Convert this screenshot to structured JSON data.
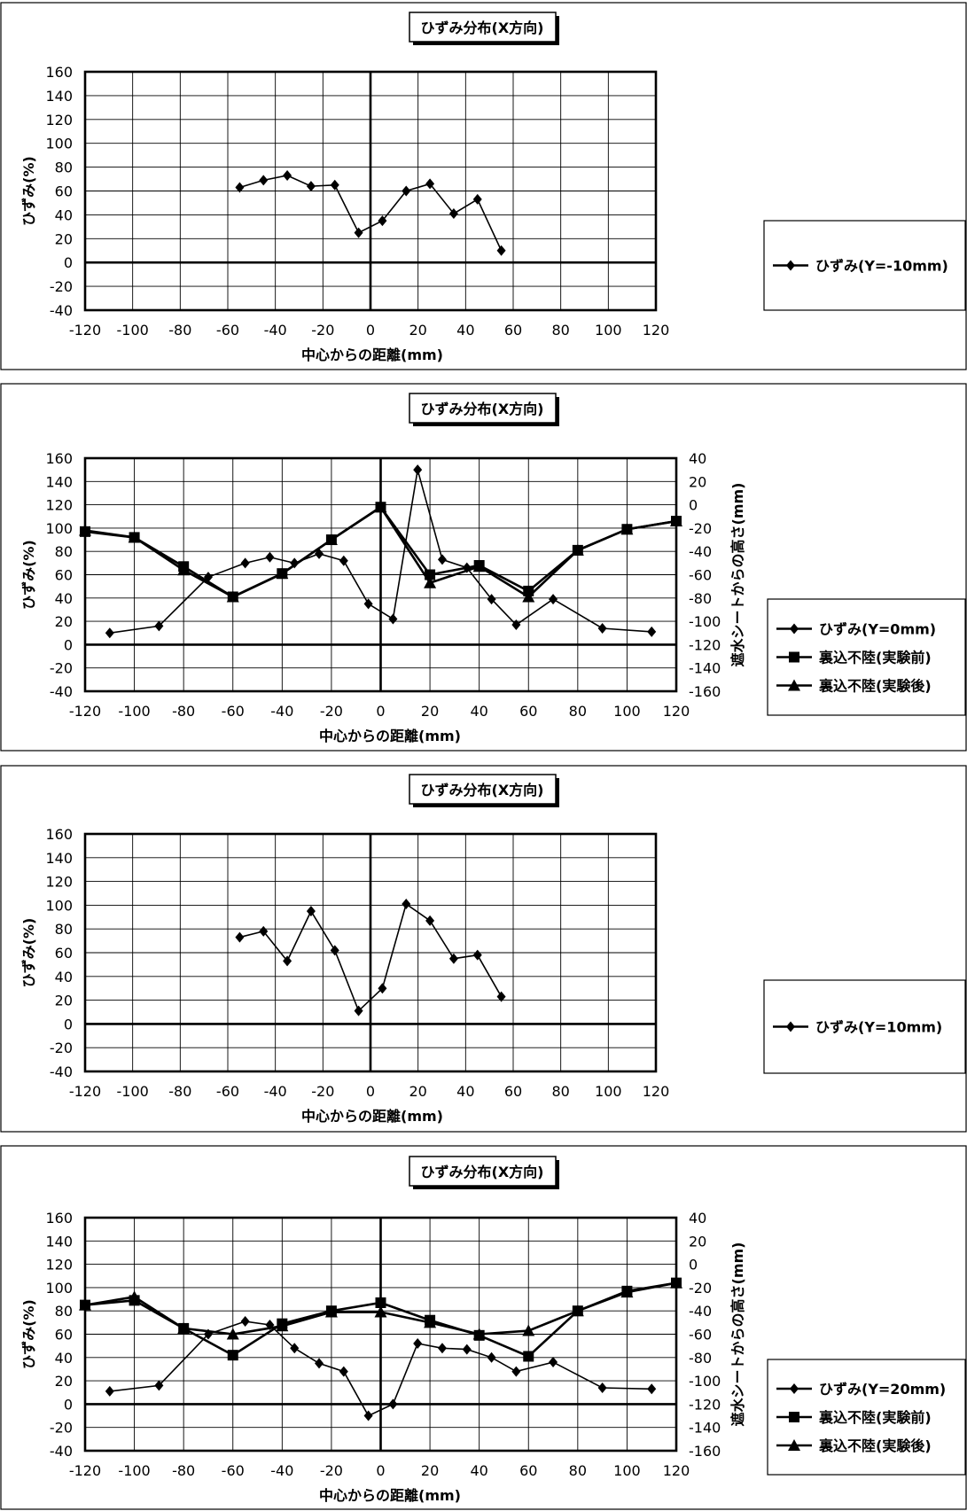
{
  "chart_data": [
    {
      "type": "line",
      "title": "ひずみ分布(X方向)",
      "xlabel": "中心からの距離(mm)",
      "ylabel": "ひずみ(%)",
      "xlim": [
        -120,
        120
      ],
      "ylim": [
        -40,
        160
      ],
      "xticks": [
        -120,
        -100,
        -80,
        -60,
        -40,
        -20,
        0,
        20,
        40,
        60,
        80,
        100,
        120
      ],
      "yticks": [
        -40,
        -20,
        0,
        20,
        40,
        60,
        80,
        100,
        120,
        140,
        160
      ],
      "grid": true,
      "legend_position": "right",
      "series": [
        {
          "name": "ひずみ(Y=-10mm)",
          "marker": "diamond",
          "axis": "left",
          "x": [
            -55,
            -45,
            -35,
            -25,
            -15,
            -5,
            5,
            15,
            25,
            35,
            45,
            55
          ],
          "values": [
            63,
            69,
            73,
            64,
            65,
            25,
            35,
            60,
            66,
            41,
            53,
            10
          ]
        }
      ]
    },
    {
      "type": "line",
      "title": "ひずみ分布(X方向)",
      "xlabel": "中心からの距離(mm)",
      "ylabel": "ひずみ(%)",
      "y2label": "遮水シートからの高さ(mm)",
      "xlim": [
        -120,
        120
      ],
      "ylim": [
        -40,
        160
      ],
      "y2lim": [
        -160,
        40
      ],
      "xticks": [
        -120,
        -100,
        -80,
        -60,
        -40,
        -20,
        0,
        20,
        40,
        60,
        80,
        100,
        120
      ],
      "yticks": [
        -40,
        -20,
        0,
        20,
        40,
        60,
        80,
        100,
        120,
        140,
        160
      ],
      "y2ticks": [
        -160,
        -140,
        -120,
        -100,
        -80,
        -60,
        -40,
        -20,
        0,
        20,
        40
      ],
      "grid": true,
      "legend_position": "right",
      "series": [
        {
          "name": "ひずみ(Y=0mm)",
          "marker": "diamond",
          "axis": "left",
          "x": [
            -110,
            -90,
            -70,
            -55,
            -45,
            -35,
            -25,
            -15,
            -5,
            5,
            15,
            25,
            35,
            45,
            55,
            70,
            90,
            110
          ],
          "values": [
            10,
            16,
            58,
            70,
            75,
            70,
            78,
            72,
            35,
            22,
            150,
            73,
            66,
            39,
            17,
            39,
            14,
            11
          ]
        },
        {
          "name": "裏込不陸(実験前)",
          "marker": "square",
          "axis": "right",
          "x": [
            -120,
            -100,
            -80,
            -60,
            -40,
            -20,
            0,
            20,
            40,
            60,
            80,
            100,
            120
          ],
          "values": [
            -23,
            -28,
            -53,
            -79,
            -59,
            -30,
            -2,
            -60,
            -52,
            -74,
            -39,
            -21,
            -14
          ]
        },
        {
          "name": "裏込不陸(実験後)",
          "marker": "triangle",
          "axis": "right",
          "x": [
            -120,
            -100,
            -80,
            -60,
            -40,
            -20,
            0,
            20,
            40,
            60,
            80,
            100,
            120
          ],
          "values": [
            -22,
            -28,
            -56,
            -79,
            -59,
            -30,
            -2,
            -67,
            -53,
            -79,
            -39,
            -21,
            -14
          ]
        }
      ]
    },
    {
      "type": "line",
      "title": "ひずみ分布(X方向)",
      "xlabel": "中心からの距離(mm)",
      "ylabel": "ひずみ(%)",
      "xlim": [
        -120,
        120
      ],
      "ylim": [
        -40,
        160
      ],
      "xticks": [
        -120,
        -100,
        -80,
        -60,
        -40,
        -20,
        0,
        20,
        40,
        60,
        80,
        100,
        120
      ],
      "yticks": [
        -40,
        -20,
        0,
        20,
        40,
        60,
        80,
        100,
        120,
        140,
        160
      ],
      "grid": true,
      "legend_position": "right",
      "series": [
        {
          "name": "ひずみ(Y=10mm)",
          "marker": "diamond",
          "axis": "left",
          "x": [
            -55,
            -45,
            -35,
            -25,
            -15,
            -5,
            5,
            15,
            25,
            35,
            45,
            55
          ],
          "values": [
            73,
            78,
            53,
            95,
            62,
            11,
            30,
            101,
            87,
            55,
            58,
            23
          ]
        }
      ]
    },
    {
      "type": "line",
      "title": "ひずみ分布(X方向)",
      "xlabel": "中心からの距離(mm)",
      "ylabel": "ひずみ(%)",
      "y2label": "遮水シートからの高さ(mm)",
      "xlim": [
        -120,
        120
      ],
      "ylim": [
        -40,
        160
      ],
      "y2lim": [
        -160,
        40
      ],
      "xticks": [
        -120,
        -100,
        -80,
        -60,
        -40,
        -20,
        0,
        20,
        40,
        60,
        80,
        100,
        120
      ],
      "yticks": [
        -40,
        -20,
        0,
        20,
        40,
        60,
        80,
        100,
        120,
        140,
        160
      ],
      "y2ticks": [
        -160,
        -140,
        -120,
        -100,
        -80,
        -60,
        -40,
        -20,
        0,
        20,
        40
      ],
      "grid": true,
      "legend_position": "right",
      "series": [
        {
          "name": "ひずみ(Y=20mm)",
          "marker": "diamond",
          "axis": "left",
          "x": [
            -110,
            -90,
            -70,
            -55,
            -45,
            -35,
            -25,
            -15,
            -5,
            5,
            15,
            25,
            35,
            45,
            55,
            70,
            90,
            110
          ],
          "values": [
            11,
            16,
            60,
            71,
            68,
            48,
            35,
            28,
            -10,
            0,
            52,
            48,
            47,
            40,
            28,
            36,
            14,
            13
          ]
        },
        {
          "name": "裏込不陸(実験前)",
          "marker": "square",
          "axis": "right",
          "x": [
            -120,
            -100,
            -80,
            -60,
            -40,
            -20,
            0,
            20,
            40,
            60,
            80,
            100,
            120
          ],
          "values": [
            -35,
            -31,
            -55,
            -78,
            -51,
            -40,
            -33,
            -48,
            -61,
            -79,
            -40,
            -23,
            -16
          ]
        },
        {
          "name": "裏込不陸(実験後)",
          "marker": "triangle",
          "axis": "right",
          "x": [
            -120,
            -100,
            -80,
            -60,
            -40,
            -20,
            0,
            20,
            40,
            60,
            80,
            100,
            120
          ],
          "values": [
            -35,
            -28,
            -55,
            -60,
            -53,
            -41,
            -41,
            -50,
            -60,
            -57,
            -40,
            -24,
            -16
          ]
        }
      ]
    }
  ]
}
